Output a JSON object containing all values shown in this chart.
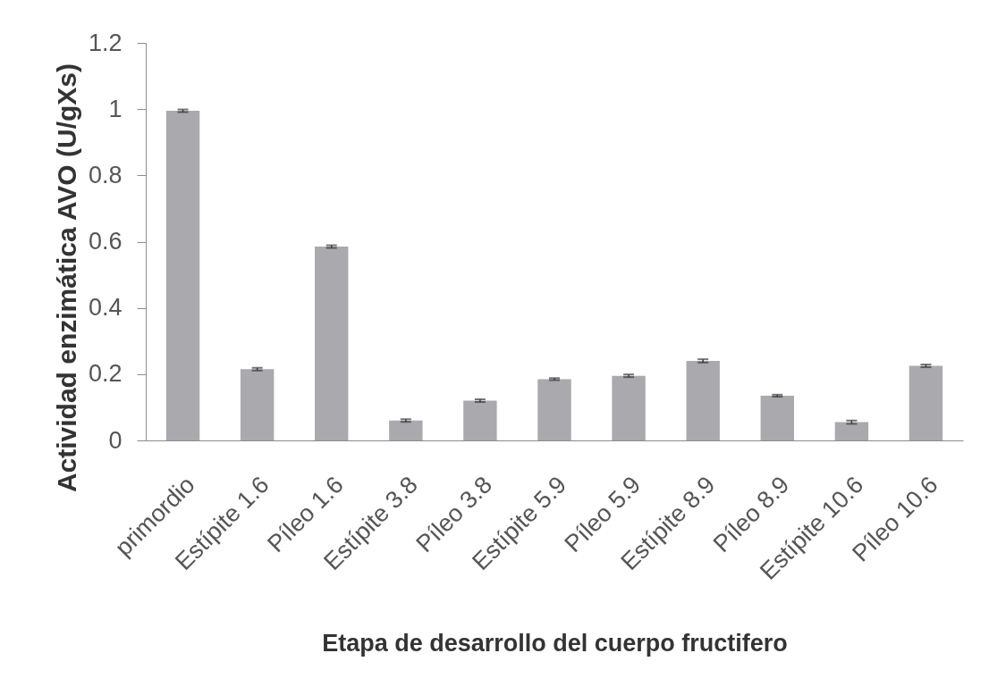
{
  "chart_data": {
    "type": "bar",
    "xlabel": "Etapa de desarrollo del cuerpo fructifero",
    "ylabel": "Actividad enzimática AVO (U/gXs)",
    "categories": [
      "primordio",
      "Estípite 1.6",
      "Píleo 1.6",
      "Estípite 3.8",
      "Píleo 3.8",
      "Estípite 5.9",
      "Píleo 5.9",
      "Estípite 8.9",
      "Píleo 8.9",
      "Estípite 10.6",
      "Píleo 10.6"
    ],
    "values": [
      0.995,
      0.215,
      0.585,
      0.06,
      0.12,
      0.185,
      0.195,
      0.24,
      0.135,
      0.055,
      0.225
    ],
    "errors": [
      0.004,
      0.004,
      0.004,
      0.004,
      0.004,
      0.003,
      0.004,
      0.005,
      0.003,
      0.005,
      0.004
    ],
    "color": "#a9a9ae",
    "ylim": [
      0,
      1.2
    ],
    "yticks": [
      0,
      0.2,
      0.4,
      0.6,
      0.8,
      1,
      1.2
    ],
    "grid": false
  }
}
